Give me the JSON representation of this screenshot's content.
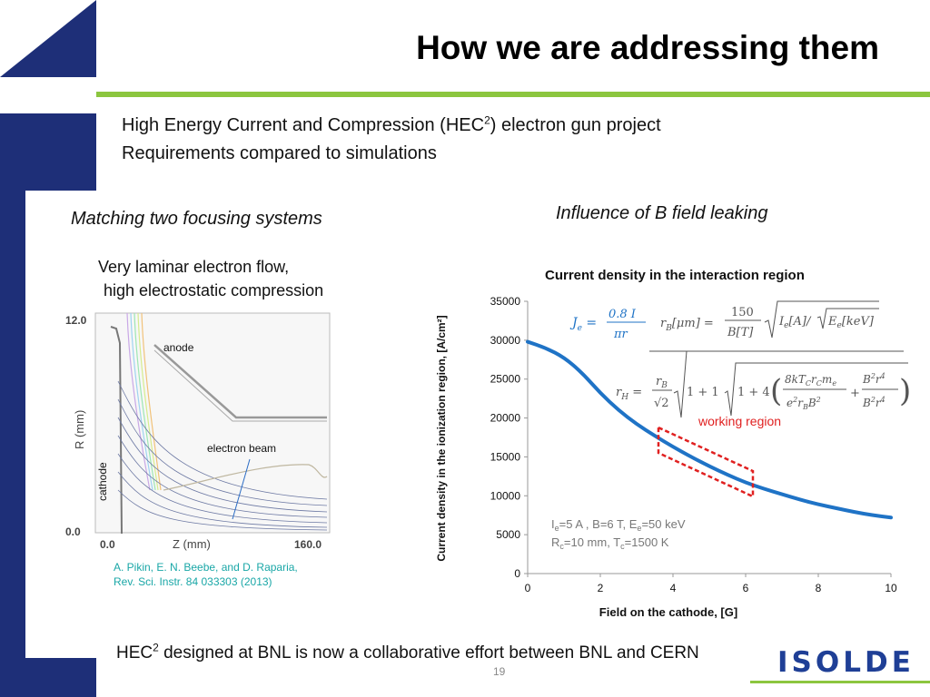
{
  "title": "How we are addressing them",
  "subtitle": {
    "line1_before": "High Energy Current and Compression (HEC",
    "line1_sup": "2",
    "line1_after": ") electron gun project",
    "line2": "Requirements compared to simulations"
  },
  "left": {
    "heading": "Matching two focusing systems",
    "laminar_line1": "Very laminar electron flow,",
    "laminar_line2": "high electrostatic compression",
    "sim": {
      "y_top_label": "12.0",
      "y_bottom_label": "0.0",
      "x_left_label": "0.0",
      "x_right_label": "160.0",
      "x_axis_label": "Z (mm)",
      "y_axis_label": "R (mm)",
      "anode_label": "anode",
      "beam_label": "electron beam",
      "cathode_label": "cathode"
    },
    "citation_line1": "A.    Pikin, E. N. Beebe, and D. Raparia,",
    "citation_line2": "Rev. Sci. Instr. 84 033303 (2013)"
  },
  "right": {
    "heading": "Influence of B field leaking"
  },
  "chart_data": {
    "type": "line",
    "title": "Current density in the interaction region",
    "xlabel": "Field on the cathode, [G]",
    "ylabel": "Current density in the ionization region, [A/cm²]",
    "xlim": [
      0,
      10
    ],
    "ylim": [
      0,
      35000
    ],
    "x_ticks": [
      "0",
      "2",
      "4",
      "6",
      "8",
      "10"
    ],
    "y_ticks": [
      "0",
      "5000",
      "10000",
      "15000",
      "20000",
      "25000",
      "30000",
      "35000"
    ],
    "grid": false,
    "series": [
      {
        "color": "#1f73c6",
        "x": [
          0,
          0.5,
          1,
          1.5,
          2,
          2.5,
          3,
          3.5,
          4,
          4.5,
          5,
          5.5,
          6,
          6.5,
          7,
          7.5,
          8,
          8.5,
          9,
          9.5,
          10
        ],
        "y": [
          29800,
          29000,
          27800,
          25800,
          23200,
          21000,
          19200,
          17700,
          16300,
          15000,
          13800,
          12700,
          11700,
          10900,
          10200,
          9500,
          8900,
          8400,
          7900,
          7500,
          7200
        ]
      }
    ],
    "annotation": {
      "label": "working region",
      "color": "#e02020",
      "x_range": [
        3.7,
        6.1
      ]
    },
    "params": {
      "line1": "=5 A , B=6 T, E",
      "line1_sub_e": "e",
      "line1_end": "=50 keV",
      "line2_r": "R",
      "line2_c": "c",
      "line2_mid": "=10 mm, T",
      "line2_end": "=1500 K",
      "i_prefix": "I"
    },
    "formulas": {
      "je": "J",
      "je_sub": "e",
      "je_num": "0.8 I",
      "je_den": "πr",
      "rb": "r",
      "rb_sub": "B",
      "rb_unit": "[μm] =",
      "rb_num": "150",
      "rb_den": "B[T]",
      "rb_sqrt": "I",
      "rb_sqrt2": "[A]/",
      "rb_sqrt3": "E",
      "rb_sqrt4": "[keV]",
      "rh": "r",
      "rh_sub": "H",
      "rh_num": "r",
      "rh_den": "√2",
      "rh_a": "1 + 1",
      "rh_b": "1 + 4",
      "rh_c_num": "8kT",
      "rh_c_num2": "r",
      "rh_c_num3": "m",
      "rh_c_den": "e",
      "rh_c_den2": "r",
      "rh_c_den3": "B",
      "rh_d_num": "B",
      "rh_d_num2": "r",
      "rh_d_den": "B",
      "rh_d_den2": "r"
    }
  },
  "footer": {
    "before": "HEC",
    "sup": "2",
    "after": " designed at BNL is now a collaborative effort between BNL and CERN"
  },
  "page_number": "19",
  "logo": "ISOLDE"
}
